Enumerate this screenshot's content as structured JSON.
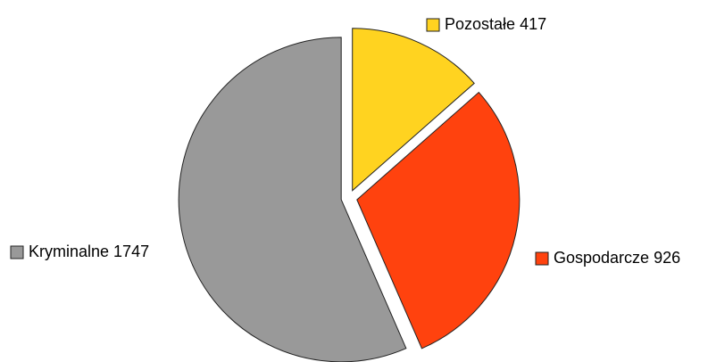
{
  "chart_data": {
    "type": "pie",
    "categories": [
      "Pozostałe",
      "Gospodarcze",
      "Kryminalne"
    ],
    "values": [
      417,
      926,
      1747
    ],
    "colors": [
      "#FFD320",
      "#FF420E",
      "#999999"
    ]
  }
}
